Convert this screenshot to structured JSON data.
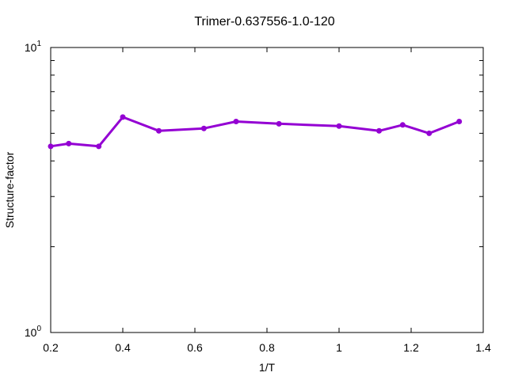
{
  "chart_data": {
    "type": "line",
    "title": "Trimer-0.637556-1.0-120",
    "xlabel": "1/T",
    "ylabel": "Structure-factor",
    "xlim": [
      0.2,
      1.4
    ],
    "ylim": [
      1,
      10
    ],
    "y_scale": "log",
    "x_ticks": [
      "0.2",
      "0.4",
      "0.6",
      "0.8",
      "1",
      "1.2",
      "1.4"
    ],
    "y_ticks": [
      {
        "base": "10",
        "exp": "0"
      },
      {
        "base": "10",
        "exp": "1"
      }
    ],
    "grid": false,
    "legend": "none",
    "series": [
      {
        "color": "#9400d3",
        "x": [
          0.2,
          0.25,
          0.3333,
          0.4,
          0.5,
          0.625,
          0.7143,
          0.8333,
          1.0,
          1.1111,
          1.1765,
          1.25,
          1.3333
        ],
        "y": [
          4.5,
          4.6,
          4.5,
          5.7,
          5.1,
          5.2,
          5.5,
          5.4,
          5.3,
          5.1,
          5.35,
          5.0,
          5.5
        ]
      }
    ]
  }
}
